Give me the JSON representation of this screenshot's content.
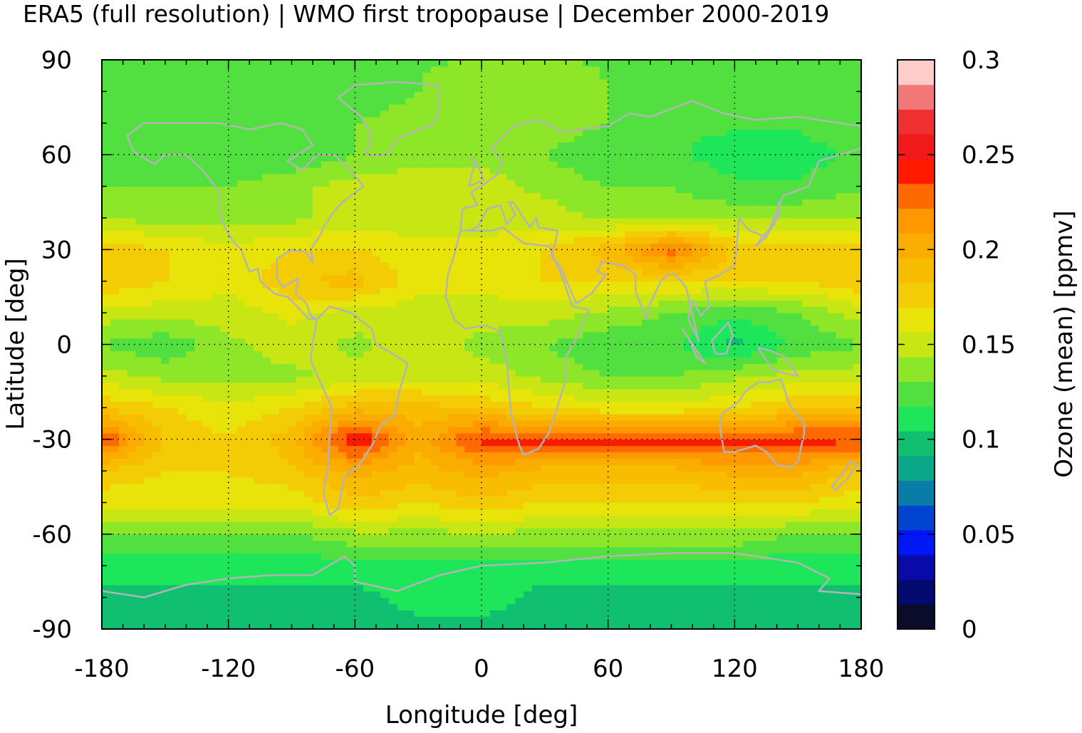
{
  "chart_data": {
    "type": "heatmap",
    "title": "ERA5 (full resolution) | WMO first tropopause | December 2000-2019",
    "xlabel": "Longitude [deg]",
    "ylabel": "Latitude [deg]",
    "colorbar_label": "Ozone (mean) [ppmv]",
    "xlim": [
      -180,
      180
    ],
    "ylim": [
      -90,
      90
    ],
    "x_ticks": [
      -180,
      -120,
      -60,
      0,
      60,
      120,
      180
    ],
    "y_ticks": [
      90,
      60,
      30,
      0,
      -30,
      -60,
      -90
    ],
    "x_tick_labels": [
      "-180",
      "-120",
      "-60",
      "0",
      "60",
      "120",
      "180"
    ],
    "y_tick_labels": [
      "90",
      "60",
      "30",
      "0",
      "-30",
      "-60",
      "-90"
    ],
    "grid": true,
    "coastlines": true,
    "colorbar_range": [
      0,
      0.3
    ],
    "colorbar_ticks": [
      0,
      0.05,
      0.1,
      0.15,
      0.2,
      0.25,
      0.3
    ],
    "colorbar_tick_labels": [
      "0",
      "0.05",
      "0.1",
      "0.15",
      "0.2",
      "0.25",
      "0.3"
    ],
    "colorbar_levels": [
      "#0b0b2b",
      "#040a6e",
      "#0a0aa8",
      "#0016f5",
      "#0044d0",
      "#0a7ca8",
      "#0aa888",
      "#10c070",
      "#1ee65a",
      "#52e040",
      "#8ee628",
      "#c8e614",
      "#e8e40a",
      "#f4cc06",
      "#f8bc00",
      "#faac00",
      "#ff9800",
      "#ff6a00",
      "#ff1a00",
      "#f01a1a",
      "#ee3030",
      "#f27878",
      "#ffcccc"
    ],
    "latitudes": [
      -90,
      -80,
      -70,
      -60,
      -50,
      -40,
      -30,
      -20,
      -10,
      0,
      10,
      20,
      30,
      40,
      50,
      60,
      70,
      80,
      90
    ],
    "longitudes": [
      -180,
      -150,
      -120,
      -90,
      -60,
      -30,
      0,
      30,
      60,
      90,
      120,
      150,
      180
    ],
    "values": [
      [
        0.1,
        0.1,
        0.1,
        0.1,
        0.1,
        0.1,
        0.1,
        0.1,
        0.1,
        0.1,
        0.1,
        0.1,
        0.1
      ],
      [
        0.1,
        0.1,
        0.1,
        0.1,
        0.1,
        0.11,
        0.11,
        0.1,
        0.1,
        0.1,
        0.1,
        0.1,
        0.1
      ],
      [
        0.11,
        0.11,
        0.11,
        0.11,
        0.11,
        0.11,
        0.11,
        0.11,
        0.11,
        0.11,
        0.11,
        0.11,
        0.11
      ],
      [
        0.13,
        0.13,
        0.13,
        0.13,
        0.14,
        0.14,
        0.14,
        0.14,
        0.14,
        0.14,
        0.14,
        0.13,
        0.13
      ],
      [
        0.16,
        0.16,
        0.16,
        0.16,
        0.18,
        0.17,
        0.18,
        0.17,
        0.17,
        0.17,
        0.17,
        0.17,
        0.16
      ],
      [
        0.18,
        0.17,
        0.17,
        0.18,
        0.2,
        0.19,
        0.2,
        0.19,
        0.19,
        0.19,
        0.2,
        0.2,
        0.18
      ],
      [
        0.24,
        0.18,
        0.17,
        0.19,
        0.25,
        0.2,
        0.24,
        0.24,
        0.24,
        0.24,
        0.24,
        0.24,
        0.24
      ],
      [
        0.18,
        0.17,
        0.16,
        0.17,
        0.19,
        0.19,
        0.18,
        0.17,
        0.16,
        0.16,
        0.17,
        0.18,
        0.18
      ],
      [
        0.15,
        0.14,
        0.14,
        0.14,
        0.15,
        0.15,
        0.15,
        0.14,
        0.13,
        0.13,
        0.14,
        0.15,
        0.15
      ],
      [
        0.13,
        0.12,
        0.14,
        0.15,
        0.14,
        0.15,
        0.14,
        0.13,
        0.12,
        0.12,
        0.1,
        0.12,
        0.13
      ],
      [
        0.15,
        0.15,
        0.15,
        0.16,
        0.15,
        0.15,
        0.15,
        0.15,
        0.14,
        0.13,
        0.12,
        0.13,
        0.15
      ],
      [
        0.18,
        0.17,
        0.16,
        0.18,
        0.19,
        0.16,
        0.16,
        0.17,
        0.17,
        0.17,
        0.17,
        0.17,
        0.18
      ],
      [
        0.18,
        0.17,
        0.16,
        0.17,
        0.17,
        0.16,
        0.16,
        0.17,
        0.19,
        0.23,
        0.18,
        0.18,
        0.18
      ],
      [
        0.14,
        0.14,
        0.14,
        0.14,
        0.15,
        0.15,
        0.15,
        0.15,
        0.14,
        0.14,
        0.14,
        0.14,
        0.14
      ],
      [
        0.13,
        0.13,
        0.13,
        0.14,
        0.15,
        0.15,
        0.15,
        0.14,
        0.13,
        0.13,
        0.12,
        0.12,
        0.13
      ],
      [
        0.12,
        0.12,
        0.12,
        0.12,
        0.13,
        0.14,
        0.14,
        0.13,
        0.12,
        0.12,
        0.11,
        0.11,
        0.12
      ],
      [
        0.13,
        0.12,
        0.12,
        0.12,
        0.13,
        0.14,
        0.14,
        0.14,
        0.13,
        0.12,
        0.12,
        0.12,
        0.13
      ],
      [
        0.13,
        0.13,
        0.13,
        0.12,
        0.12,
        0.13,
        0.14,
        0.14,
        0.13,
        0.13,
        0.13,
        0.13,
        0.13
      ],
      [
        0.13,
        0.13,
        0.13,
        0.13,
        0.13,
        0.13,
        0.13,
        0.13,
        0.13,
        0.13,
        0.13,
        0.13,
        0.13
      ]
    ]
  }
}
